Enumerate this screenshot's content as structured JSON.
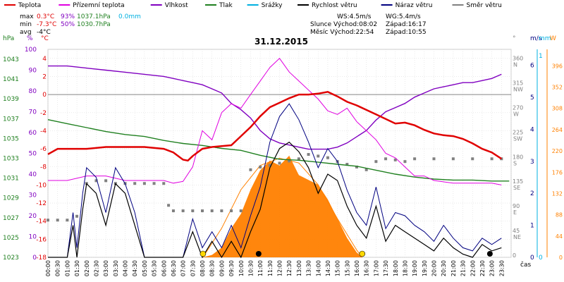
{
  "chart_data": {
    "type": "line",
    "title": "31.12.2015",
    "xlabel": "čas",
    "legend": [
      {
        "label": "Teplota",
        "color": "#e00000"
      },
      {
        "label": "Přízemní teplota",
        "color": "#e000e0"
      },
      {
        "label": "Vlhkost",
        "color": "#8000c0"
      },
      {
        "label": "Tlak",
        "color": "#208020"
      },
      {
        "label": "Srážky",
        "color": "#00b0e0"
      },
      {
        "label": "Rychlost větru",
        "color": "#000000"
      },
      {
        "label": "Náraz větru",
        "color": "#000080"
      },
      {
        "label": "Směr větru",
        "color": "#808080"
      }
    ],
    "stats": {
      "rows": [
        {
          "label": "max",
          "temp": "0.3°C",
          "hum": "93%",
          "press": "1037.1hPa",
          "rain": "0.0mm"
        },
        {
          "label": "min",
          "temp": "-7.3°C",
          "hum": "50%",
          "press": "1030.7hPa",
          "rain": ""
        },
        {
          "label": "avg",
          "temp": "-4°C",
          "hum": "",
          "press": "",
          "rain": ""
        }
      ],
      "info": [
        "WS:4.5m/s",
        "WG:5.4m/s",
        "Slunce Východ:08:02",
        "Západ:16:17",
        "Měsíc Východ:22:54",
        "Západ:10:55"
      ]
    },
    "axes": {
      "hpa_title": "hPa",
      "pct_title": "%",
      "degc_title": "°C",
      "dir_title": "°",
      "ms_title": "m/s",
      "mm_title": "mm",
      "w_title": "W",
      "hpa_ticks": [
        "1043",
        "1041",
        "1039",
        "1037",
        "1035",
        "1033",
        "1031",
        "1029",
        "1027",
        "1025",
        "1023"
      ],
      "pct_ticks": [
        "100",
        "90",
        "80",
        "70",
        "60",
        "50",
        "40",
        "30",
        "20",
        "10",
        "0"
      ],
      "degc_ticks": [
        "4",
        "2",
        "0",
        "-2",
        "-4",
        "-6",
        "-8",
        "-10",
        "-12",
        "-14",
        "-16",
        "-18"
      ],
      "dir_ticks": [
        {
          "deg": "360",
          "dir": "N"
        },
        {
          "deg": "315",
          "dir": "NW"
        },
        {
          "deg": "270",
          "dir": "W"
        },
        {
          "deg": "225",
          "dir": "SW"
        },
        {
          "deg": "180",
          "dir": "S"
        },
        {
          "deg": "135",
          "dir": "SE"
        },
        {
          "deg": "90",
          "dir": "E"
        },
        {
          "deg": "45",
          "dir": "NE"
        },
        {
          "deg": "0",
          "dir": ""
        }
      ],
      "ms_ticks": [
        "6",
        "5",
        "4",
        "3",
        "2",
        "1",
        "0"
      ],
      "mm_ticks": [
        "1",
        "0"
      ],
      "w_ticks": [
        "396",
        "352",
        "308",
        "264",
        "220",
        "176",
        "132",
        "88",
        "44",
        "0"
      ],
      "x_ticks": [
        "00:00",
        "00:30",
        "01:00",
        "01:30",
        "02:00",
        "02:30",
        "03:00",
        "03:30",
        "04:00",
        "04:30",
        "05:00",
        "05:30",
        "06:00",
        "06:30",
        "07:00",
        "07:30",
        "08:00",
        "08:30",
        "09:00",
        "09:30",
        "10:00",
        "10:30",
        "11:00",
        "11:30",
        "12:00",
        "12:30",
        "13:00",
        "13:30",
        "14:00",
        "14:30",
        "15:00",
        "15:30",
        "16:00",
        "16:30",
        "17:00",
        "17:30",
        "18:00",
        "18:30",
        "19:00",
        "19:30",
        "20:00",
        "20:30",
        "21:00",
        "21:30",
        "22:00",
        "22:30",
        "23:00",
        "23:30"
      ]
    },
    "series": {
      "temperature": {
        "name": "Teplota",
        "unit": "°C",
        "x": [
          0,
          0.5,
          1,
          2,
          3,
          4,
          5,
          6,
          6.5,
          7,
          7.25,
          7.5,
          8,
          8.5,
          9,
          9.5,
          10,
          10.5,
          11,
          11.5,
          12,
          12.5,
          13,
          13.5,
          14,
          14.5,
          15,
          15.5,
          16,
          16.5,
          17,
          17.5,
          18,
          18.5,
          19,
          19.5,
          20,
          20.5,
          21,
          21.5,
          22,
          22.5,
          23,
          23.5
        ],
        "y": [
          -6.6,
          -6.0,
          -6.0,
          -6.0,
          -5.8,
          -5.8,
          -5.8,
          -6.0,
          -6.4,
          -7.2,
          -7.3,
          -6.8,
          -6.0,
          -5.8,
          -5.7,
          -5.6,
          -4.6,
          -3.6,
          -2.4,
          -1.4,
          -0.9,
          -0.4,
          0.0,
          0.0,
          0.1,
          0.3,
          -0.2,
          -0.8,
          -1.2,
          -1.7,
          -2.2,
          -2.7,
          -3.2,
          -3.1,
          -3.4,
          -3.9,
          -4.3,
          -4.5,
          -4.6,
          -4.9,
          -5.4,
          -6.0,
          -6.4,
          -7.1
        ]
      },
      "ground_temperature": {
        "name": "Přízemní teplota",
        "unit": "°C",
        "x": [
          0,
          1,
          2,
          3,
          4,
          5,
          6,
          6.5,
          7,
          7.5,
          8,
          8.5,
          9,
          9.5,
          10,
          10.5,
          11,
          11.5,
          12,
          12.5,
          13,
          13.5,
          14,
          14.5,
          15,
          15.5,
          16,
          16.5,
          17,
          17.5,
          18,
          18.5,
          19,
          19.5,
          20,
          21,
          22,
          22.5,
          23,
          23.5
        ],
        "y": [
          -9.5,
          -9.5,
          -9.0,
          -9.0,
          -9.5,
          -9.5,
          -9.5,
          -9.8,
          -9.6,
          -8.0,
          -4.0,
          -5.0,
          -2.0,
          -1.0,
          -1.5,
          0.0,
          1.5,
          3.0,
          4.0,
          2.5,
          1.5,
          0.5,
          -0.5,
          -1.8,
          -2.2,
          -1.5,
          -3.0,
          -4.0,
          -5.0,
          -6.5,
          -7.0,
          -8.0,
          -9.0,
          -9.0,
          -9.5,
          -9.8,
          -9.8,
          -9.8,
          -9.8,
          -10.0
        ]
      },
      "humidity": {
        "name": "Vlhkost",
        "unit": "%",
        "x": [
          0,
          1,
          2,
          3,
          4,
          5,
          6,
          6.5,
          7,
          7.5,
          8,
          8.5,
          9,
          9.5,
          10,
          10.5,
          11,
          11.5,
          12,
          12.5,
          13,
          13.5,
          14,
          14.5,
          15,
          15.5,
          16,
          16.5,
          17,
          17.5,
          18,
          18.5,
          19,
          19.5,
          20,
          20.5,
          21,
          21.5,
          22,
          22.5,
          23,
          23.5
        ],
        "y": [
          92,
          92,
          91,
          90,
          89,
          88,
          87,
          86,
          85,
          84,
          83,
          81,
          79,
          74,
          71,
          67,
          61,
          57,
          55,
          54,
          53,
          52,
          52,
          52,
          53,
          55,
          58,
          61,
          66,
          70,
          72,
          74,
          77,
          79,
          81,
          82,
          83,
          84,
          84,
          85,
          86,
          88
        ]
      },
      "pressure": {
        "name": "Tlak",
        "unit": "hPa",
        "x": [
          0,
          1,
          2,
          3,
          4,
          5,
          6,
          7,
          8,
          9,
          10,
          11,
          12,
          13,
          14,
          15,
          16,
          17,
          18,
          19,
          20,
          21,
          22,
          23,
          23.9
        ],
        "y": [
          1036.9,
          1036.5,
          1036.1,
          1035.7,
          1035.4,
          1035.2,
          1034.8,
          1034.5,
          1034.3,
          1034.0,
          1033.8,
          1033.3,
          1032.9,
          1032.8,
          1032.6,
          1032.4,
          1032.2,
          1031.8,
          1031.4,
          1031.1,
          1030.9,
          1030.8,
          1030.8,
          1030.7,
          1030.7
        ]
      },
      "wind_speed": {
        "name": "Rychlost větru",
        "unit": "m/s",
        "x": [
          0,
          1,
          1.3,
          1.5,
          1.8,
          2,
          2.5,
          3,
          3.5,
          4,
          4.5,
          5,
          5.5,
          6,
          7,
          7.5,
          8,
          8.5,
          9,
          9.5,
          10,
          10.5,
          11,
          11.5,
          12,
          12.5,
          13,
          13.5,
          14,
          14.5,
          15,
          15.5,
          16,
          16.5,
          17,
          17.5,
          18,
          18.5,
          19,
          19.5,
          20,
          20.5,
          21,
          21.5,
          22,
          22.5,
          23,
          23.5
        ],
        "y": [
          0,
          0,
          1.0,
          0.0,
          1.5,
          2.3,
          2.0,
          1.0,
          2.3,
          2.0,
          1.0,
          0,
          0,
          0,
          0,
          0.8,
          0,
          0.5,
          0,
          0.5,
          0,
          0.8,
          1.5,
          2.8,
          3.4,
          3.6,
          3.3,
          2.8,
          2.0,
          2.6,
          2.4,
          1.6,
          1.0,
          0.6,
          1.6,
          0.5,
          1.0,
          0.8,
          0.6,
          0.4,
          0.2,
          0.6,
          0.3,
          0.1,
          0,
          0.4,
          0.2,
          0.3
        ]
      },
      "wind_gust": {
        "name": "Náraz větru",
        "unit": "m/s",
        "x": [
          0,
          1,
          1.3,
          1.5,
          1.8,
          2,
          2.5,
          3,
          3.5,
          4,
          4.5,
          5,
          5.5,
          6,
          7,
          7.5,
          8,
          8.5,
          9,
          9.5,
          10,
          10.5,
          11,
          11.5,
          12,
          12.5,
          13,
          13.5,
          14,
          14.5,
          15,
          15.5,
          16,
          16.5,
          17,
          17.5,
          18,
          18.5,
          19,
          19.5,
          20,
          20.5,
          21,
          21.5,
          22,
          22.5,
          23,
          23.5
        ],
        "y": [
          0,
          0,
          1.4,
          0.3,
          2.0,
          2.8,
          2.5,
          1.4,
          2.8,
          2.3,
          1.4,
          0,
          0,
          0,
          0,
          1.2,
          0.3,
          0.8,
          0.3,
          1.0,
          0.3,
          1.3,
          2.2,
          3.6,
          4.4,
          4.8,
          4.3,
          3.6,
          2.8,
          3.4,
          3.0,
          2.1,
          1.4,
          1.0,
          2.2,
          0.9,
          1.4,
          1.3,
          1.0,
          0.8,
          0.5,
          1.0,
          0.6,
          0.3,
          0.2,
          0.6,
          0.4,
          0.6
        ]
      },
      "wind_direction": {
        "name": "Směr větru",
        "unit": "°",
        "x": [
          0,
          0.5,
          1,
          1.5,
          2,
          2.5,
          3,
          3.5,
          4,
          4.5,
          5,
          5.5,
          6,
          6.25,
          6.5,
          7,
          7.5,
          8,
          8.5,
          9,
          9.5,
          10,
          10.5,
          11,
          11.5,
          12,
          12.5,
          13,
          13.5,
          14,
          14.5,
          15,
          15.5,
          16,
          16.5,
          17,
          17.5,
          18,
          18.5,
          19,
          20,
          21,
          22,
          23,
          23.5
        ],
        "y": [
          68,
          68,
          68,
          75,
          135,
          140,
          140,
          135,
          135,
          135,
          135,
          135,
          135,
          95,
          85,
          85,
          85,
          85,
          85,
          85,
          85,
          85,
          160,
          165,
          168,
          172,
          176,
          180,
          188,
          185,
          182,
          175,
          170,
          165,
          160,
          175,
          180,
          178,
          175,
          180,
          180,
          180,
          180,
          180,
          180
        ]
      },
      "solar": {
        "name": "Solar",
        "unit": "W",
        "x": [
          8,
          8.5,
          9,
          9.5,
          10,
          10.5,
          11,
          11.5,
          12,
          12.5,
          13,
          13.5,
          14,
          14.5,
          15,
          15.5,
          16,
          16.3
        ],
        "y": [
          0,
          5,
          20,
          60,
          90,
          140,
          180,
          200,
          190,
          210,
          170,
          160,
          150,
          120,
          80,
          40,
          10,
          0
        ]
      },
      "solar_potential": {
        "name": "Solar potential",
        "unit": "W",
        "x": [
          8.03,
          9,
          10,
          11,
          12,
          13,
          14,
          15,
          16,
          16.28
        ],
        "y": [
          0,
          60,
          140,
          190,
          205,
          195,
          150,
          80,
          15,
          0
        ]
      },
      "rain": {
        "name": "Srážky",
        "unit": "mm",
        "x": [],
        "y": []
      }
    },
    "markers": {
      "sunrise": "08:02",
      "sunset": "16:17",
      "moonrise": "22:54",
      "moonset": "10:55"
    },
    "xlim": [
      0,
      24
    ],
    "ylim_c": [
      -18,
      5
    ],
    "ylim_pct": [
      0,
      100
    ],
    "ylim_hpa": [
      1023,
      1044
    ],
    "ylim_ms": [
      0,
      6.5
    ],
    "ylim_dir": [
      0,
      380
    ],
    "ylim_w": [
      0,
      430
    ]
  }
}
